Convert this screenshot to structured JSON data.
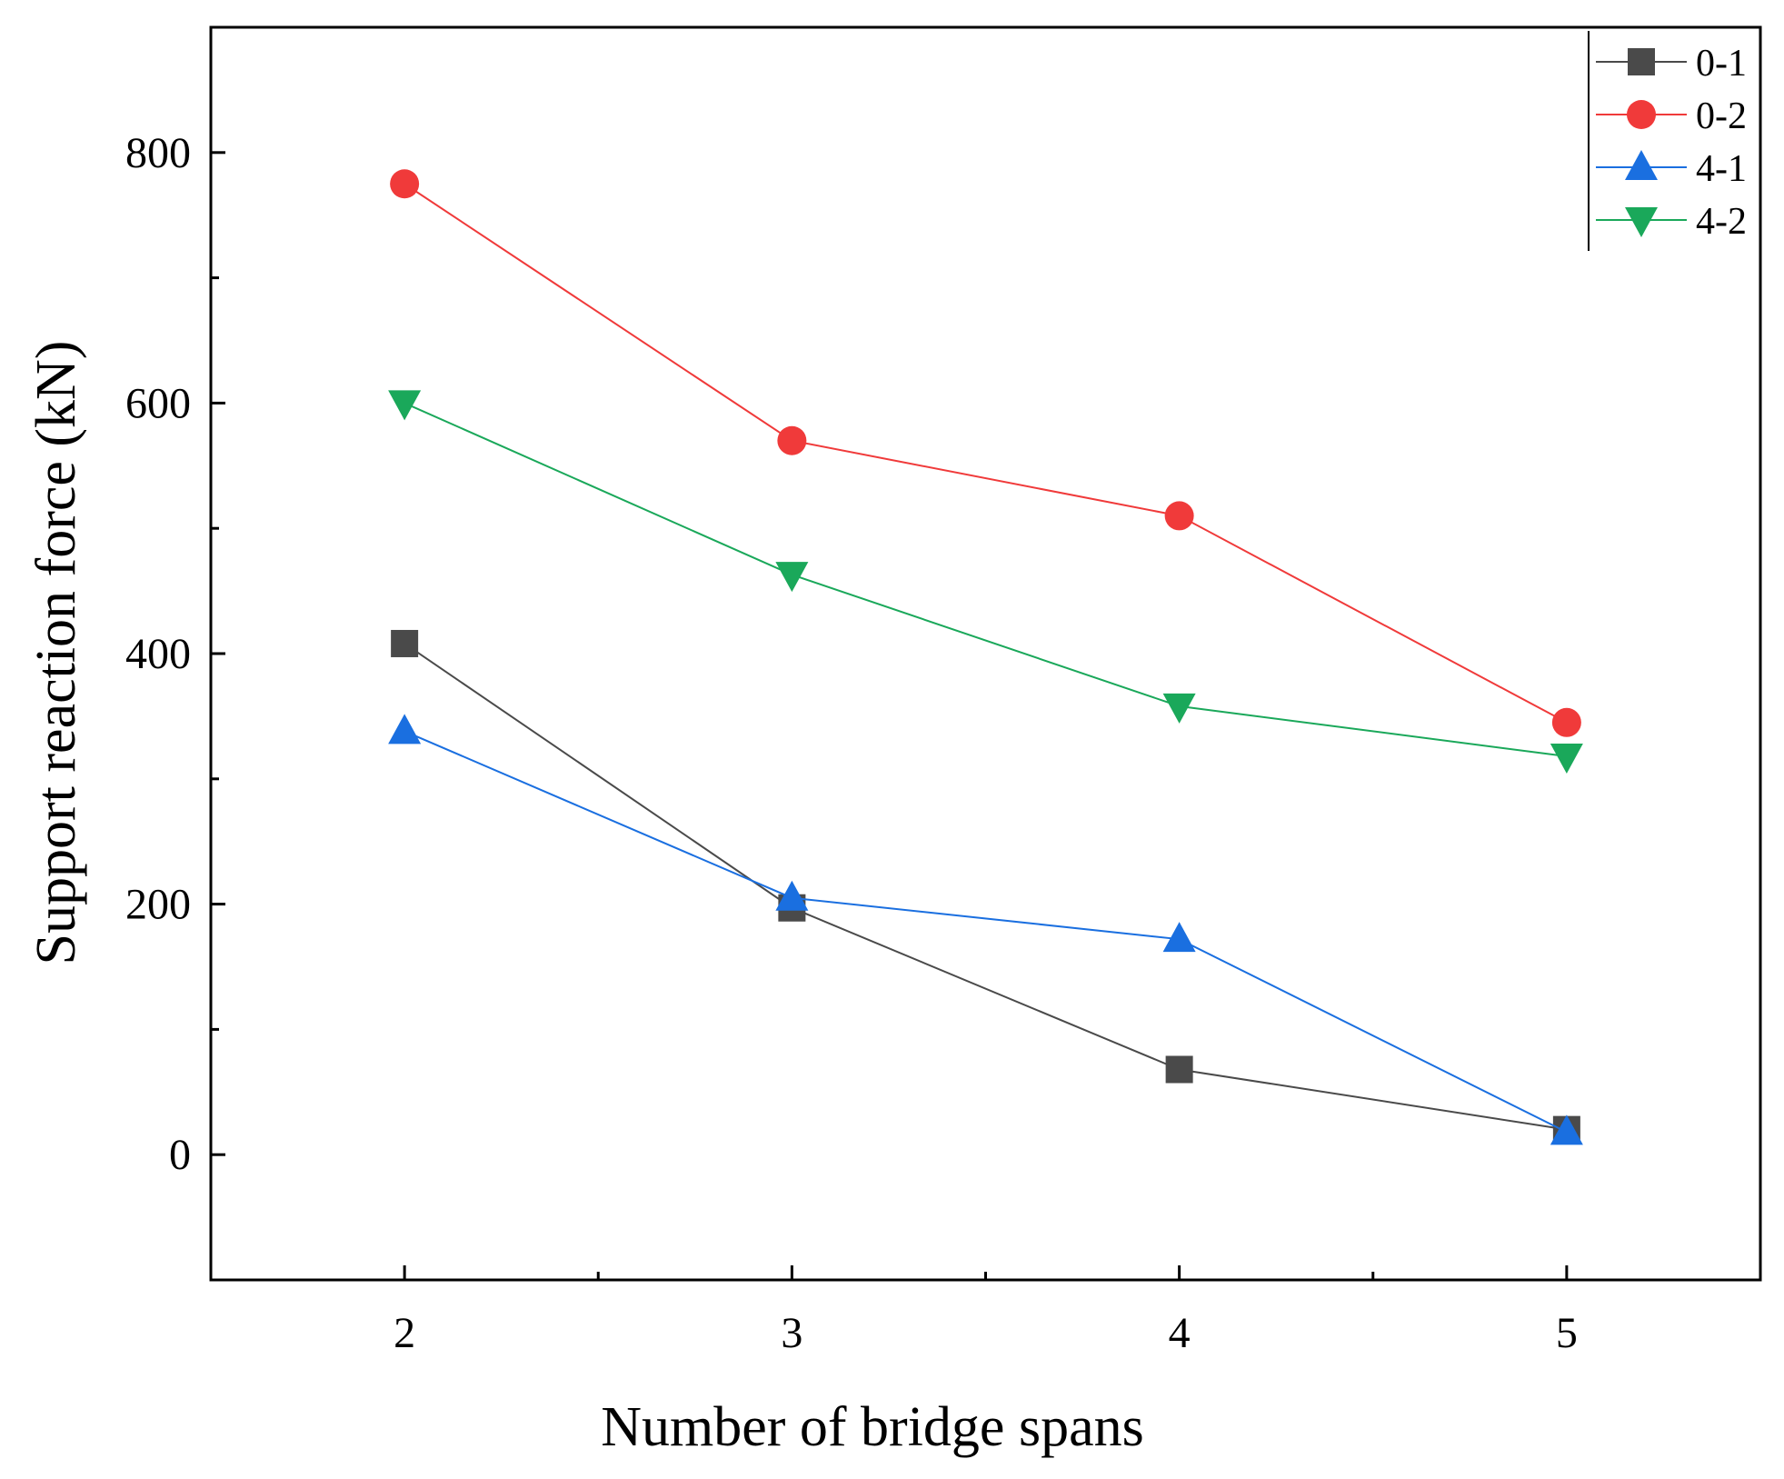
{
  "chart_data": {
    "type": "line",
    "title": "",
    "xlabel": "Number of bridge spans",
    "ylabel": "Support reaction force (kN)",
    "x": [
      2,
      3,
      4,
      5
    ],
    "x_ticks": [
      "2",
      "3",
      "4",
      "5"
    ],
    "x_minor_ticks": [
      2.5,
      3.5,
      4.5
    ],
    "xlim": [
      1.5,
      5.5
    ],
    "ylim": [
      -100,
      900
    ],
    "y_ticks": [
      "0",
      "200",
      "400",
      "600",
      "800"
    ],
    "y_tick_values": [
      0,
      200,
      400,
      600,
      800
    ],
    "y_minor_ticks": [
      100,
      300,
      500,
      700
    ],
    "grid": false,
    "legend_position": "top-right",
    "series": [
      {
        "name": "0-1",
        "color": "#4a4a4a",
        "marker": "square",
        "values": [
          408,
          197,
          68,
          20
        ]
      },
      {
        "name": "0-2",
        "color": "#f03a3a",
        "marker": "circle",
        "values": [
          775,
          570,
          510,
          345
        ]
      },
      {
        "name": "4-1",
        "color": "#1a6fe0",
        "marker": "triangle-up",
        "values": [
          338,
          205,
          172,
          18
        ]
      },
      {
        "name": "4-2",
        "color": "#1aa85a",
        "marker": "triangle-down",
        "values": [
          600,
          463,
          358,
          318
        ]
      }
    ]
  }
}
